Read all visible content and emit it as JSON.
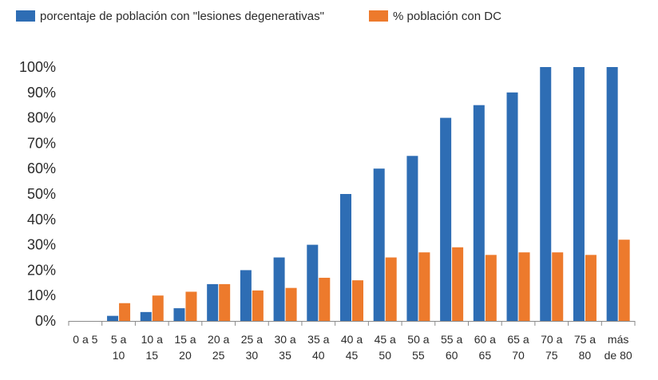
{
  "chart_data": {
    "type": "bar",
    "title": "",
    "xlabel": "",
    "ylabel": "",
    "ylim": [
      0,
      100
    ],
    "yticks": [
      "0%",
      "10%",
      "20%",
      "30%",
      "40%",
      "50%",
      "60%",
      "70%",
      "80%",
      "90%",
      "100%"
    ],
    "categories": [
      [
        "0 a 5",
        ""
      ],
      [
        "5 a",
        "10"
      ],
      [
        "10 a",
        "15"
      ],
      [
        "15 a",
        "20"
      ],
      [
        "20 a",
        "25"
      ],
      [
        "25 a",
        "30"
      ],
      [
        "30 a",
        "35"
      ],
      [
        "35 a",
        "40"
      ],
      [
        "40 a",
        "45"
      ],
      [
        "45 a",
        "50"
      ],
      [
        "50 a",
        "55"
      ],
      [
        "55 a",
        "60"
      ],
      [
        "60 a",
        "65"
      ],
      [
        "65 a",
        "70"
      ],
      [
        "70 a",
        "75"
      ],
      [
        "75 a",
        "80"
      ],
      [
        "más",
        "de 80"
      ]
    ],
    "series": [
      {
        "name": "porcentaje de población con \"lesiones degenerativas\"",
        "color": "#2e6db4",
        "values": [
          0,
          2,
          3.5,
          5,
          14.5,
          20,
          25,
          30,
          50,
          60,
          65,
          80,
          85,
          90,
          100,
          100,
          100
        ]
      },
      {
        "name": "% población con DC",
        "color": "#ed7a2c",
        "values": [
          0,
          7,
          10,
          11.5,
          14.5,
          12,
          13,
          17,
          16,
          25,
          27,
          29,
          26,
          27,
          27,
          26,
          32
        ]
      }
    ],
    "legend_position": "top-left",
    "grid": false
  }
}
